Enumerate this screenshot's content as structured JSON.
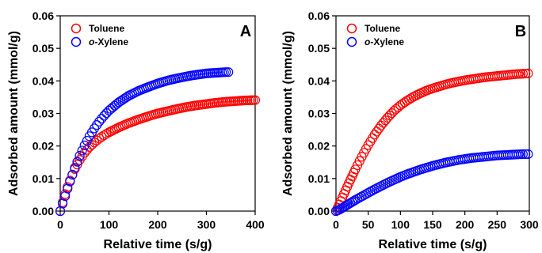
{
  "colors": {
    "toluene": "#ff0000",
    "o_xylene": "#0000ff",
    "axis": "#000000"
  },
  "chart_data": [
    {
      "type": "scatter",
      "panel_label": "A",
      "xlabel": "Relative time (s/g)",
      "ylabel": "Adsorbed amount (mmol/g)",
      "xlim": [
        0,
        400
      ],
      "ylim": [
        0,
        0.06
      ],
      "xticks": [
        "0",
        "100",
        "200",
        "300",
        "400"
      ],
      "yticks": [
        "0.00",
        "0.01",
        "0.02",
        "0.03",
        "0.04",
        "0.05",
        "0.06"
      ],
      "legend": {
        "placement": "top-left"
      },
      "series": [
        {
          "name": "Toluene",
          "color": "#ff0000",
          "x": [
            0,
            5,
            10,
            15,
            20,
            30,
            40,
            50,
            60,
            70,
            80,
            90,
            100,
            120,
            140,
            160,
            180,
            200,
            220,
            240,
            260,
            280,
            300,
            320,
            340,
            360,
            380,
            400
          ],
          "y": [
            0,
            0.0027,
            0.0052,
            0.0074,
            0.0094,
            0.0129,
            0.0157,
            0.0179,
            0.0197,
            0.0211,
            0.0223,
            0.0233,
            0.0242,
            0.0257,
            0.027,
            0.0281,
            0.0291,
            0.03,
            0.0307,
            0.0314,
            0.032,
            0.0325,
            0.0329,
            0.0333,
            0.0336,
            0.0338,
            0.034,
            0.0341
          ]
        },
        {
          "name": "o-Xylene",
          "color": "#0000ff",
          "x": [
            0,
            5,
            10,
            15,
            20,
            30,
            40,
            50,
            60,
            70,
            80,
            90,
            100,
            120,
            140,
            160,
            180,
            200,
            220,
            240,
            260,
            280,
            300,
            320,
            340,
            345
          ],
          "y": [
            0,
            0.0023,
            0.0046,
            0.0069,
            0.0091,
            0.0133,
            0.017,
            0.0202,
            0.023,
            0.0254,
            0.0275,
            0.0293,
            0.0309,
            0.0334,
            0.0354,
            0.0369,
            0.0381,
            0.0392,
            0.0401,
            0.0408,
            0.0414,
            0.0419,
            0.0423,
            0.0425,
            0.0427,
            0.0427
          ]
        }
      ]
    },
    {
      "type": "scatter",
      "panel_label": "B",
      "xlabel": "Relative time (s/g)",
      "ylabel": "Adsorbed amount (mmol/g)",
      "xlim": [
        0,
        300
      ],
      "ylim": [
        0,
        0.06
      ],
      "xticks": [
        "0",
        "50",
        "100",
        "150",
        "200",
        "250",
        "300"
      ],
      "yticks": [
        "0.00",
        "0.01",
        "0.02",
        "0.03",
        "0.04",
        "0.05",
        "0.06"
      ],
      "legend": {
        "placement": "top-left"
      },
      "series": [
        {
          "name": "Toluene",
          "color": "#ff0000",
          "x": [
            0,
            5,
            10,
            15,
            20,
            25,
            30,
            40,
            50,
            60,
            70,
            80,
            90,
            100,
            110,
            120,
            130,
            140,
            150,
            160,
            170,
            180,
            190,
            200,
            210,
            220,
            230,
            240,
            250,
            260,
            270,
            280,
            290,
            298
          ],
          "y": [
            0,
            0.002,
            0.0042,
            0.0064,
            0.0086,
            0.0107,
            0.0128,
            0.0167,
            0.0203,
            0.0235,
            0.0263,
            0.0287,
            0.0308,
            0.0325,
            0.0339,
            0.0351,
            0.0361,
            0.037,
            0.0377,
            0.0383,
            0.0389,
            0.0394,
            0.0398,
            0.0402,
            0.0405,
            0.0408,
            0.0411,
            0.0413,
            0.0415,
            0.0417,
            0.0419,
            0.0421,
            0.0422,
            0.0423
          ]
        },
        {
          "name": "o-Xylene",
          "color": "#0000ff",
          "x": [
            0,
            5,
            10,
            15,
            20,
            25,
            30,
            40,
            50,
            60,
            70,
            80,
            90,
            100,
            110,
            120,
            130,
            140,
            150,
            160,
            170,
            180,
            190,
            200,
            210,
            220,
            230,
            240,
            250,
            260,
            270,
            280,
            290,
            298
          ],
          "y": [
            0,
            0.0004,
            0.001,
            0.0016,
            0.0022,
            0.0028,
            0.0034,
            0.0045,
            0.0056,
            0.0067,
            0.0077,
            0.0087,
            0.0096,
            0.0105,
            0.0113,
            0.012,
            0.0127,
            0.0133,
            0.0139,
            0.0144,
            0.0149,
            0.0153,
            0.0157,
            0.016,
            0.0163,
            0.0165,
            0.0167,
            0.0169,
            0.0171,
            0.0172,
            0.0173,
            0.0174,
            0.0175,
            0.0175
          ]
        }
      ]
    }
  ]
}
